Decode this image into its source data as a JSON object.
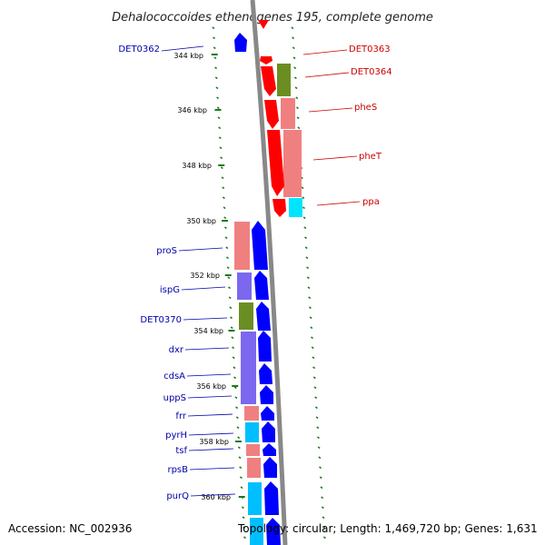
{
  "title": "Dehalococcoides ethenogenes 195, complete genome",
  "accession": "Accession: NC_002936",
  "summary": "Topology: circular; Length: 1,469,720 bp; Genes: 1,631",
  "kbp_ticks": [
    "344 kbp",
    "346 kbp",
    "348 kbp",
    "350 kbp",
    "352 kbp",
    "354 kbp",
    "356 kbp",
    "358 kbp",
    "360 kbp"
  ],
  "forward_labels": [
    "DET0363",
    "DET0364",
    "pheS",
    "pheT",
    "ppa"
  ],
  "reverse_labels": [
    "DET0362",
    "proS",
    "ispG",
    "DET0370",
    "dxr",
    "cdsA",
    "uppS",
    "frr",
    "pyrH",
    "tsf",
    "rpsB",
    "purQ"
  ],
  "colors": {
    "forward_cds": "#ff0000",
    "reverse_cds": "#0000ff",
    "backbone": "#888888",
    "cog_light_red": "#f08080",
    "cog_olive": "#6b8e23",
    "cog_cyan": "#00e5ff",
    "cog_slate": "#7b68ee",
    "tick_green": "#1a7a1a",
    "label_blue": "#0000aa",
    "label_red": "#cc0000"
  }
}
